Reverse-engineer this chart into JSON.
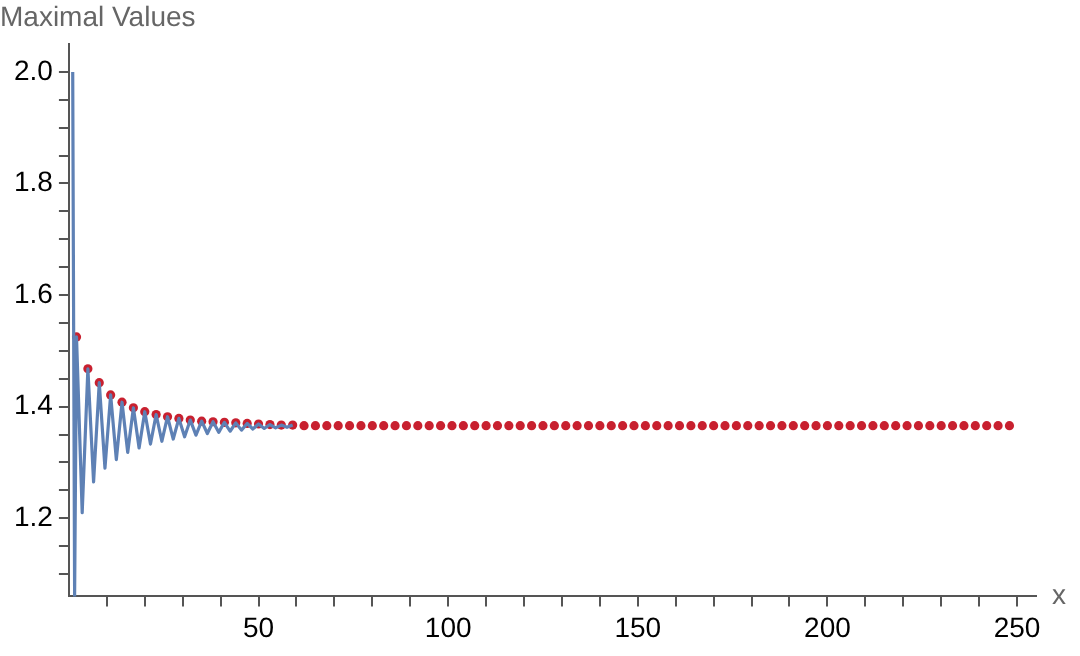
{
  "chart_data": {
    "type": "line",
    "ylabel": "Maximal Values",
    "xlabel": "x",
    "xlim": [
      0,
      255
    ],
    "ylim": [
      1.06,
      2.05
    ],
    "xticks": [
      {
        "value": 10,
        "label": null
      },
      {
        "value": 20,
        "label": null
      },
      {
        "value": 30,
        "label": null
      },
      {
        "value": 40,
        "label": null
      },
      50,
      {
        "value": 60,
        "label": null
      },
      {
        "value": 70,
        "label": null
      },
      {
        "value": 80,
        "label": null
      },
      {
        "value": 90,
        "label": null
      },
      100,
      {
        "value": 110,
        "label": null
      },
      {
        "value": 120,
        "label": null
      },
      {
        "value": 130,
        "label": null
      },
      {
        "value": 140,
        "label": null
      },
      150,
      {
        "value": 160,
        "label": null
      },
      {
        "value": 170,
        "label": null
      },
      {
        "value": 180,
        "label": null
      },
      {
        "value": 190,
        "label": null
      },
      200,
      {
        "value": 210,
        "label": null
      },
      {
        "value": 220,
        "label": null
      },
      {
        "value": 230,
        "label": null
      },
      {
        "value": 240,
        "label": null
      },
      250
    ],
    "yticks": [
      {
        "value": 1.1,
        "label": null
      },
      {
        "value": 1.15,
        "label": null
      },
      1.2,
      {
        "value": 1.25,
        "label": null
      },
      {
        "value": 1.3,
        "label": null
      },
      {
        "value": 1.35,
        "label": null
      },
      1.4,
      {
        "value": 1.45,
        "label": null
      },
      {
        "value": 1.5,
        "label": null
      },
      {
        "value": 1.55,
        "label": null
      },
      1.6,
      {
        "value": 1.65,
        "label": null
      },
      {
        "value": 1.7,
        "label": null
      },
      {
        "value": 1.75,
        "label": null
      },
      1.8,
      {
        "value": 1.85,
        "label": null
      },
      {
        "value": 1.9,
        "label": null
      },
      {
        "value": 1.95,
        "label": null
      },
      {
        "value": 2,
        "label": "2.0"
      }
    ],
    "grid": false,
    "legend": false,
    "series": [
      {
        "color": "#5e81b5",
        "x": [
          1,
          1.5,
          2,
          3.5,
          5,
          6.5,
          8,
          9.5,
          11,
          12.5,
          14,
          15.5,
          17,
          18.5,
          20,
          21.5,
          23,
          24.5,
          26,
          27.5,
          29,
          30.5,
          32,
          33.5,
          35,
          36.5,
          38,
          39.5,
          41,
          42.5,
          44,
          45.5,
          47,
          48.5,
          50,
          51.5,
          53,
          54.5,
          56,
          57.5,
          59
        ],
        "values": [
          2.0,
          1.06,
          1.525,
          1.21,
          1.468,
          1.265,
          1.443,
          1.29,
          1.421,
          1.305,
          1.408,
          1.318,
          1.398,
          1.326,
          1.391,
          1.333,
          1.386,
          1.338,
          1.382,
          1.342,
          1.379,
          1.346,
          1.376,
          1.349,
          1.374,
          1.352,
          1.373,
          1.354,
          1.372,
          1.356,
          1.371,
          1.358,
          1.37,
          1.36,
          1.369,
          1.361,
          1.368,
          1.362,
          1.367,
          1.363,
          1.367
        ]
      },
      {
        "type": "scatter",
        "color": "#c8202f",
        "x": [
          2,
          5,
          8,
          11,
          14,
          17,
          20,
          23,
          26,
          29,
          32,
          35,
          38,
          41,
          44,
          47,
          50,
          53,
          56,
          59,
          62,
          65,
          68,
          71,
          74,
          77,
          80,
          83,
          86,
          89,
          92,
          95,
          98,
          101,
          104,
          107,
          110,
          113,
          116,
          119,
          122,
          125,
          128,
          131,
          134,
          137,
          140,
          143,
          146,
          149,
          152,
          155,
          158,
          161,
          164,
          167,
          170,
          173,
          176,
          179,
          182,
          185,
          188,
          191,
          194,
          197,
          200,
          203,
          206,
          209,
          212,
          215,
          218,
          221,
          224,
          227,
          230,
          233,
          236,
          239,
          242,
          245,
          248
        ],
        "values": [
          1.525,
          1.468,
          1.443,
          1.421,
          1.408,
          1.398,
          1.391,
          1.386,
          1.382,
          1.379,
          1.376,
          1.374,
          1.373,
          1.372,
          1.371,
          1.37,
          1.369,
          1.368,
          1.367,
          1.367,
          1.366,
          1.366,
          1.366,
          1.366,
          1.366,
          1.366,
          1.366,
          1.366,
          1.366,
          1.366,
          1.366,
          1.366,
          1.366,
          1.366,
          1.366,
          1.366,
          1.366,
          1.366,
          1.366,
          1.366,
          1.366,
          1.366,
          1.366,
          1.366,
          1.366,
          1.366,
          1.366,
          1.366,
          1.366,
          1.366,
          1.366,
          1.366,
          1.366,
          1.366,
          1.366,
          1.366,
          1.366,
          1.366,
          1.366,
          1.366,
          1.366,
          1.366,
          1.366,
          1.366,
          1.366,
          1.366,
          1.366,
          1.366,
          1.366,
          1.366,
          1.366,
          1.366,
          1.366,
          1.366,
          1.366,
          1.366,
          1.366,
          1.366,
          1.366,
          1.366,
          1.366,
          1.366,
          1.366
        ]
      }
    ]
  }
}
